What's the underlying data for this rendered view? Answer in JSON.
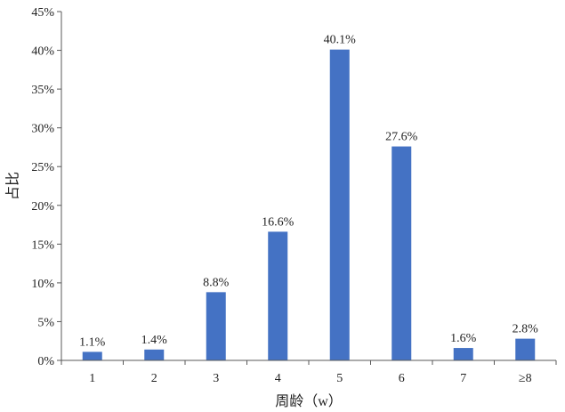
{
  "chart_data": {
    "type": "bar",
    "title": "",
    "xlabel": "周龄（w）",
    "ylabel": "占比",
    "categories": [
      "1",
      "2",
      "3",
      "4",
      "5",
      "6",
      "7",
      "≥8"
    ],
    "values": [
      1.1,
      1.4,
      8.8,
      16.6,
      40.1,
      27.6,
      1.6,
      2.8
    ],
    "data_labels": [
      "1.1%",
      "1.4%",
      "8.8%",
      "16.6%",
      "40.1%",
      "27.6%",
      "1.6%",
      "2.8%"
    ],
    "ylim": [
      0,
      45
    ],
    "yticks": [
      0,
      5,
      10,
      15,
      20,
      25,
      30,
      35,
      40,
      45
    ],
    "ytick_labels": [
      "0%",
      "5%",
      "10%",
      "15%",
      "20%",
      "25%",
      "30%",
      "35%",
      "40%",
      "45%"
    ],
    "unit": "%",
    "grid": false,
    "legend": "none",
    "bar_color": "#4472C4",
    "axis_color": "#595959"
  }
}
